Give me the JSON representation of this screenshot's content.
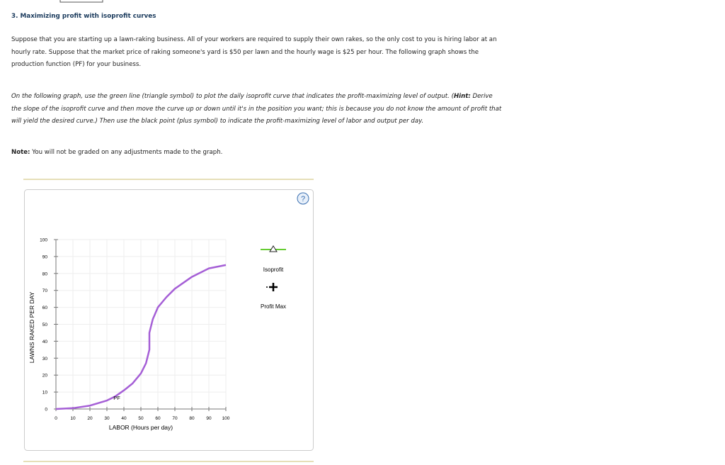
{
  "question": {
    "title": "3. Maximizing profit with isoprofit curves",
    "intro": "Suppose that you are starting up a lawn-raking business. All of your workers are required to supply their own rakes, so the only cost to you is hiring labor at an hourly rate. Suppose that the market price of raking someone's yard is $50 per lawn and the hourly wage is $25 per hour. The following graph shows the production function (PF) for your business.",
    "instruction_start": "On the following graph, use the green line (triangle symbol) to plot the daily isoprofit curve that indicates the profit-maximizing level of output. (",
    "hint": "Hint:",
    "instruction_end": " Derive the slope of the isoprofit curve and then move the curve up or down until it's in the position you want; this is because you do not know the amount of profit that will yield the desired curve.) Then use the black point (plus symbol) to indicate the profit-maximizing level of labor and output per day.",
    "note_label": "Note:",
    "note": " You will not be graded on any adjustments made to the graph."
  },
  "chart_data": {
    "type": "line",
    "xlabel": "LABOR (Hours per day)",
    "ylabel": "LAWNS RAKED PER DAY",
    "xlim": [
      0,
      100
    ],
    "ylim": [
      0,
      100
    ],
    "xticks": [
      0,
      10,
      20,
      30,
      40,
      50,
      60,
      70,
      80,
      90,
      100
    ],
    "yticks": [
      0,
      10,
      20,
      30,
      40,
      50,
      60,
      70,
      80,
      90,
      100
    ],
    "grid": true,
    "series": [
      {
        "name": "PF",
        "color": "#a55fd6",
        "x": [
          0,
          10,
          20,
          30,
          35,
          40,
          45,
          50,
          53,
          55,
          55,
          57,
          60,
          65,
          70,
          80,
          90,
          100
        ],
        "values": [
          0,
          0.5,
          2,
          5,
          7.5,
          11,
          15,
          21,
          27,
          35,
          45,
          53,
          60,
          66,
          71,
          78,
          83,
          85
        ]
      }
    ],
    "tools": [
      {
        "name": "Isoprofit",
        "color": "#66cc33"
      },
      {
        "name": "Profit Max",
        "color": "#000000"
      }
    ]
  }
}
